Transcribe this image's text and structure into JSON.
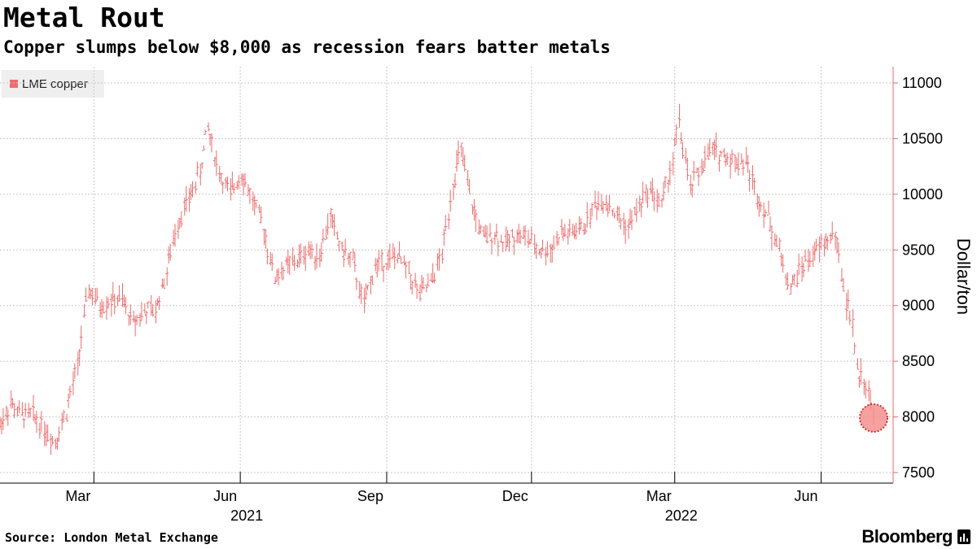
{
  "header": {
    "title": "Metal Rout",
    "subtitle": "Copper slumps below $8,000 as recession fears batter metals"
  },
  "footer": {
    "source": "Source: London Metal Exchange",
    "brand": "Bloomberg"
  },
  "colors": {
    "series": "#f16a6a",
    "marker_fill": "#f58f8f",
    "marker_border": "#c0392b",
    "grid": "#c8c8c8",
    "axis": "#f16a6a"
  },
  "chart_data": {
    "type": "line",
    "title": "Metal Rout",
    "subtitle": "Copper slumps below $8,000 as recession fears batter metals",
    "xlabel": "",
    "ylabel": "Dollar/ton",
    "ylim": [
      7500,
      11000
    ],
    "yticks": [
      7500,
      8000,
      8500,
      9000,
      9500,
      10000,
      10500,
      11000
    ],
    "xrange": [
      "2021-01-01",
      "2022-07-05"
    ],
    "xticks": [
      {
        "date": "2021-03-01",
        "label": "Mar"
      },
      {
        "date": "2021-06-01",
        "label": "Jun"
      },
      {
        "date": "2021-09-01",
        "label": "Sep"
      },
      {
        "date": "2021-12-01",
        "label": "Dec"
      },
      {
        "date": "2022-03-01",
        "label": "Mar"
      },
      {
        "date": "2022-06-01",
        "label": "Jun"
      }
    ],
    "year_labels": [
      {
        "date": "2021-06-01",
        "label": "2021"
      },
      {
        "date": "2022-03-01",
        "label": "2022"
      }
    ],
    "grid": true,
    "legend": {
      "position": "top-left",
      "label": "LME copper"
    },
    "highlight": {
      "date": "2022-07-04",
      "value": 7990
    },
    "series": [
      {
        "name": "LME copper",
        "style": "ohlc",
        "points": [
          [
            "2021-01-01",
            7920
          ],
          [
            "2021-01-08",
            8120
          ],
          [
            "2021-01-15",
            8010
          ],
          [
            "2021-01-22",
            8020
          ],
          [
            "2021-01-29",
            7900
          ],
          [
            "2021-02-05",
            7780
          ],
          [
            "2021-02-12",
            8050
          ],
          [
            "2021-02-19",
            8450
          ],
          [
            "2021-02-26",
            9150
          ],
          [
            "2021-03-05",
            9000
          ],
          [
            "2021-03-12",
            9050
          ],
          [
            "2021-03-19",
            9050
          ],
          [
            "2021-03-26",
            8850
          ],
          [
            "2021-04-02",
            8950
          ],
          [
            "2021-04-09",
            8950
          ],
          [
            "2021-04-16",
            9300
          ],
          [
            "2021-04-23",
            9750
          ],
          [
            "2021-04-30",
            9950
          ],
          [
            "2021-05-07",
            10200
          ],
          [
            "2021-05-12",
            10600
          ],
          [
            "2021-05-19",
            10200
          ],
          [
            "2021-05-26",
            10000
          ],
          [
            "2021-06-02",
            10200
          ],
          [
            "2021-06-09",
            9950
          ],
          [
            "2021-06-16",
            9700
          ],
          [
            "2021-06-23",
            9250
          ],
          [
            "2021-06-30",
            9350
          ],
          [
            "2021-07-07",
            9400
          ],
          [
            "2021-07-14",
            9500
          ],
          [
            "2021-07-21",
            9450
          ],
          [
            "2021-07-28",
            9800
          ],
          [
            "2021-08-04",
            9500
          ],
          [
            "2021-08-11",
            9400
          ],
          [
            "2021-08-18",
            9000
          ],
          [
            "2021-08-25",
            9350
          ],
          [
            "2021-09-01",
            9400
          ],
          [
            "2021-09-08",
            9450
          ],
          [
            "2021-09-15",
            9300
          ],
          [
            "2021-09-22",
            9100
          ],
          [
            "2021-09-29",
            9200
          ],
          [
            "2021-10-06",
            9450
          ],
          [
            "2021-10-13",
            10100
          ],
          [
            "2021-10-18",
            10400
          ],
          [
            "2021-10-25",
            9900
          ],
          [
            "2021-11-01",
            9600
          ],
          [
            "2021-11-08",
            9650
          ],
          [
            "2021-11-15",
            9550
          ],
          [
            "2021-11-22",
            9650
          ],
          [
            "2021-11-29",
            9600
          ],
          [
            "2021-12-06",
            9500
          ],
          [
            "2021-12-13",
            9500
          ],
          [
            "2021-12-20",
            9650
          ],
          [
            "2021-12-27",
            9650
          ],
          [
            "2022-01-03",
            9700
          ],
          [
            "2022-01-10",
            9900
          ],
          [
            "2022-01-17",
            9950
          ],
          [
            "2022-01-24",
            9800
          ],
          [
            "2022-01-31",
            9700
          ],
          [
            "2022-02-07",
            9900
          ],
          [
            "2022-02-14",
            10050
          ],
          [
            "2022-02-21",
            9900
          ],
          [
            "2022-02-28",
            10300
          ],
          [
            "2022-03-04",
            10650
          ],
          [
            "2022-03-11",
            10050
          ],
          [
            "2022-03-18",
            10250
          ],
          [
            "2022-03-25",
            10400
          ],
          [
            "2022-04-01",
            10350
          ],
          [
            "2022-04-08",
            10300
          ],
          [
            "2022-04-15",
            10300
          ],
          [
            "2022-04-22",
            10000
          ],
          [
            "2022-04-29",
            9800
          ],
          [
            "2022-05-06",
            9500
          ],
          [
            "2022-05-13",
            9150
          ],
          [
            "2022-05-20",
            9350
          ],
          [
            "2022-05-27",
            9450
          ],
          [
            "2022-06-03",
            9550
          ],
          [
            "2022-06-10",
            9650
          ],
          [
            "2022-06-14",
            9300
          ],
          [
            "2022-06-17",
            9050
          ],
          [
            "2022-06-21",
            8850
          ],
          [
            "2022-06-24",
            8400
          ],
          [
            "2022-06-28",
            8350
          ],
          [
            "2022-07-01",
            8250
          ],
          [
            "2022-07-04",
            7990
          ]
        ]
      }
    ]
  }
}
